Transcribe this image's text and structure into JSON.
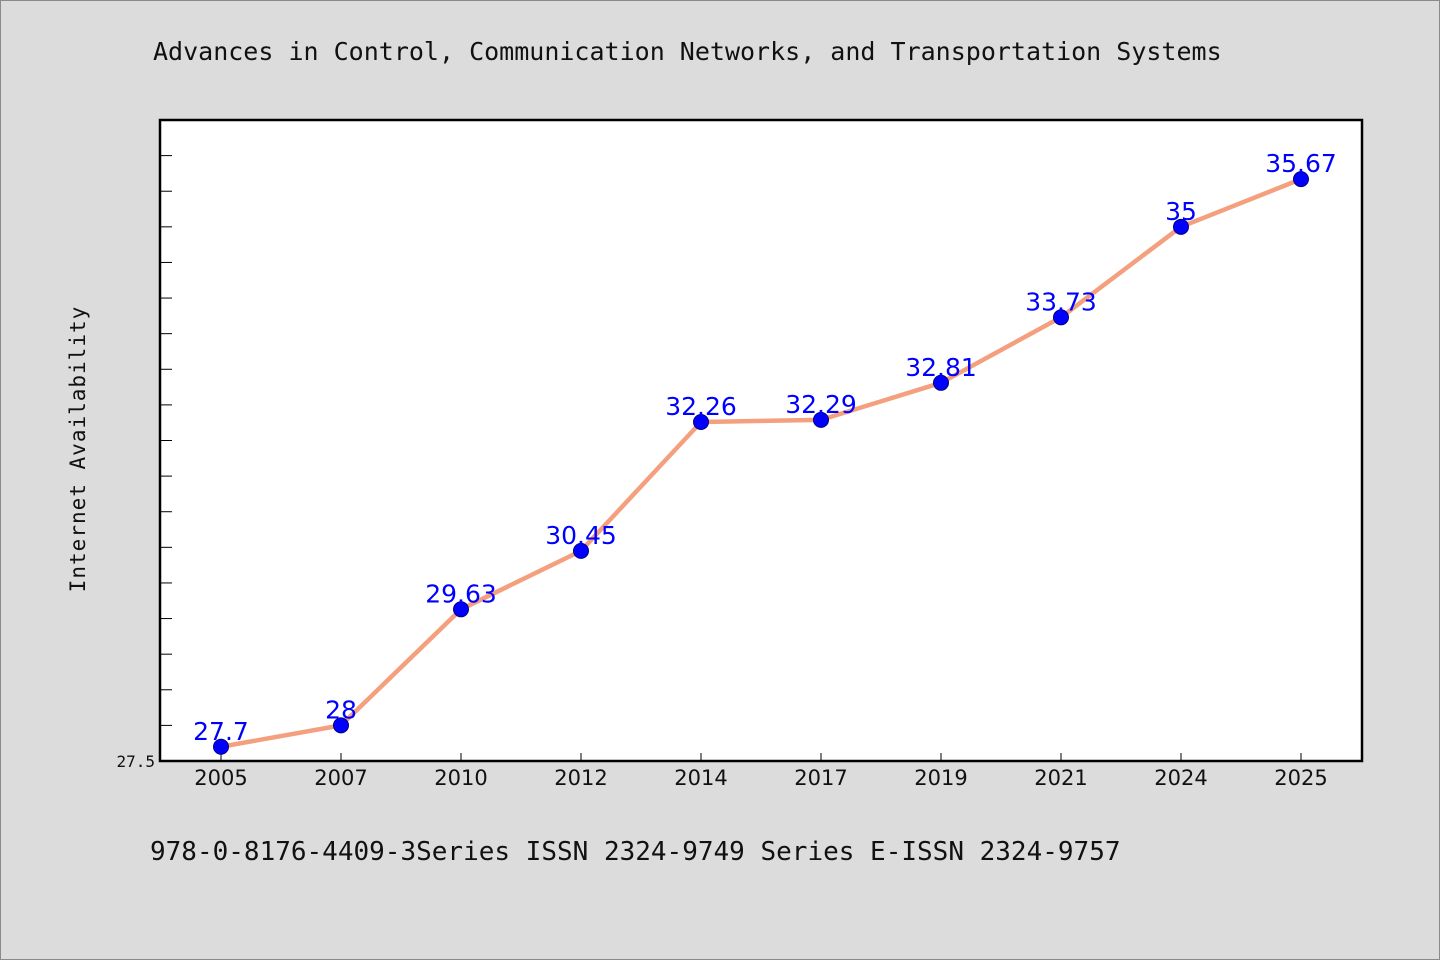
{
  "page": {
    "title": "Advances in Control, Communication Networks, and Transportation Systems",
    "footer": "978-0-8176-4409-3Series ISSN 2324-9749 Series E-ISSN 2324-9757"
  },
  "chart_data": {
    "type": "line",
    "categories": [
      "2005",
      "2007",
      "2010",
      "2012",
      "2014",
      "2017",
      "2019",
      "2021",
      "2024",
      "2025"
    ],
    "series": [
      {
        "values": [
          27.7,
          28,
          29.63,
          30.45,
          32.26,
          32.29,
          32.81,
          33.73,
          35,
          35.67
        ],
        "labels": [
          "27.7",
          "28",
          "29.63",
          "30.45",
          "32.26",
          "32.29",
          "32.81",
          "33.73",
          "35",
          "35.67"
        ]
      }
    ],
    "ylabel": "Internet Availability",
    "ytick_labels": [
      "27.5"
    ],
    "ylim": [
      27.5,
      36.5
    ],
    "grid": false,
    "legend": "none",
    "colors": {
      "line": "#f4a07f",
      "marker": "#0000ff",
      "marker_edge": "#000080",
      "label": "#0000ff"
    }
  }
}
